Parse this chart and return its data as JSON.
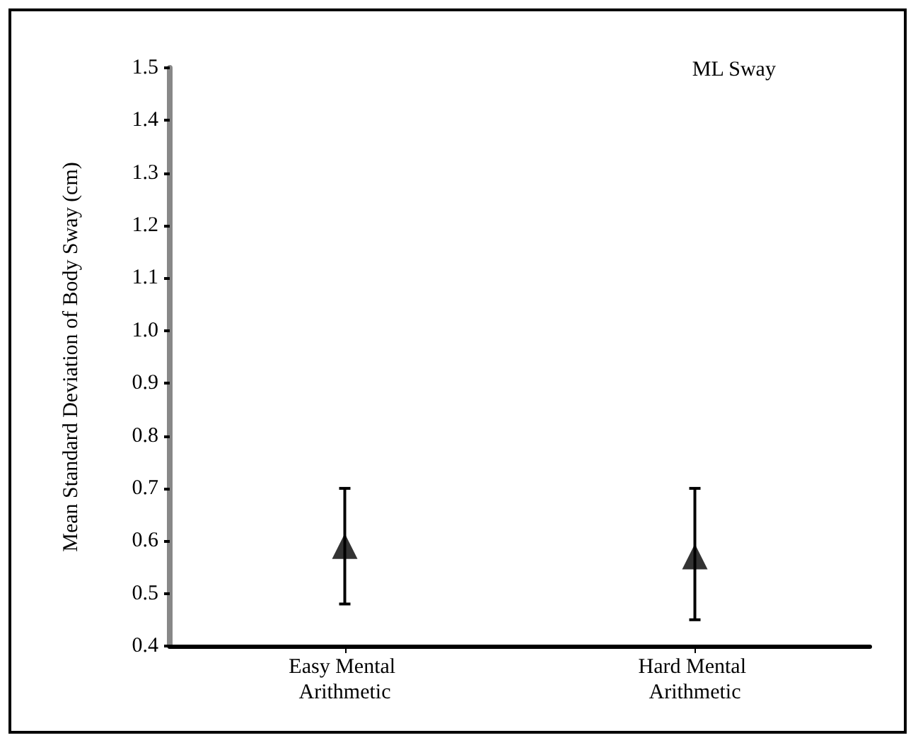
{
  "chart_data": {
    "type": "scatter",
    "ylabel": "Mean Standard Deviation of Body Sway (cm)",
    "annotations": [
      "ML Sway"
    ],
    "categories": [
      "Easy Mental Arithmetic",
      "Hard Mental Arithmetic"
    ],
    "values": [
      0.59,
      0.57
    ],
    "errors": [
      [
        0.48,
        0.7
      ],
      [
        0.45,
        0.7
      ]
    ],
    "color": "#000000",
    "marker": "triangle",
    "ylim": [
      0.4,
      1.5
    ],
    "yticks": [
      {
        "value": 0.4,
        "label": "0.4"
      },
      {
        "value": 0.5,
        "label": "0.5"
      },
      {
        "value": 0.6,
        "label": "0.6"
      },
      {
        "value": 0.7,
        "label": "0.7"
      },
      {
        "value": 0.8,
        "label": "0.8"
      },
      {
        "value": 0.9,
        "label": "0.9"
      },
      {
        "value": 1,
        "label": "1.0"
      },
      {
        "value": 1.1,
        "label": "1.1"
      },
      {
        "value": 1.2,
        "label": "1.2"
      },
      {
        "value": 1.3,
        "label": "1.3"
      },
      {
        "value": 1.4,
        "label": "1.4"
      },
      {
        "value": 1.5,
        "label": "1.5"
      }
    ],
    "grid": false
  }
}
